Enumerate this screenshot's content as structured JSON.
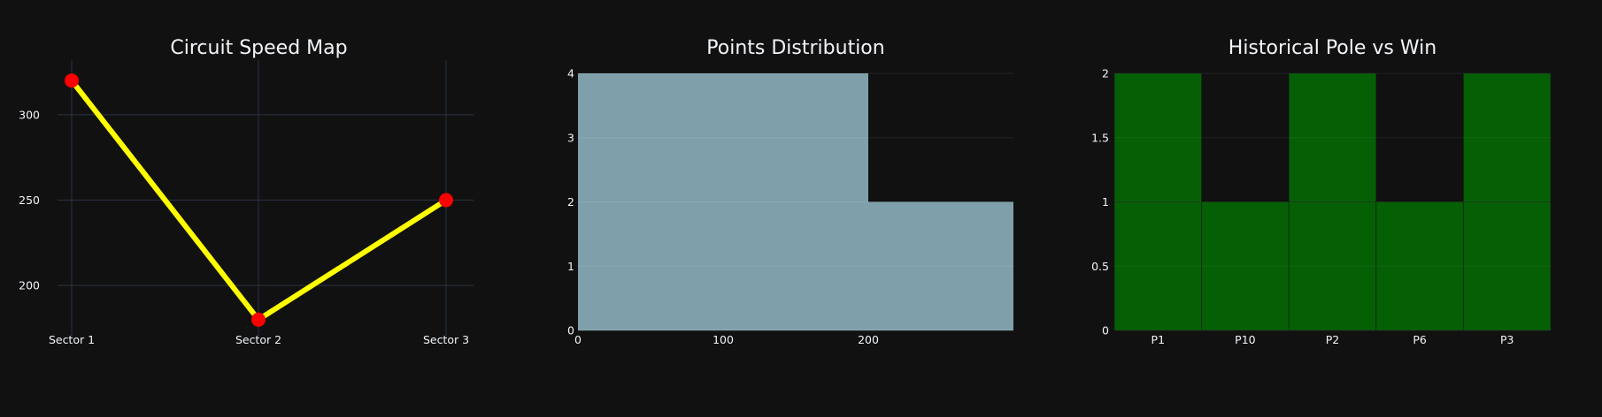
{
  "colors": {
    "background": "#111111",
    "grid": "#283442",
    "text": "#f2f5fa",
    "line": "#ffff00",
    "marker": "#ff0000",
    "histogram_fill": "#7fa0aa",
    "bar_fill": "#055f05"
  },
  "chart_data": [
    {
      "type": "line",
      "title": "Circuit Speed Map",
      "categories": [
        "Sector 1",
        "Sector 2",
        "Sector 3"
      ],
      "series": [
        {
          "values": [
            320,
            180,
            250
          ]
        }
      ],
      "ylim": [
        168,
        332
      ],
      "yticks": [
        200,
        250,
        300
      ],
      "grid": true,
      "markers": true
    },
    {
      "type": "bar",
      "title": "Points Distribution",
      "histogram": true,
      "bins": [
        {
          "x0": 0,
          "x1": 200,
          "count": 4
        },
        {
          "x0": 200,
          "x1": 300,
          "count": 2
        }
      ],
      "xlim": [
        0,
        300
      ],
      "xticks": [
        0,
        100,
        200
      ],
      "ylim": [
        0,
        4
      ],
      "yticks": [
        0,
        1,
        2,
        3,
        4
      ],
      "grid": true
    },
    {
      "type": "bar",
      "title": "Historical Pole vs Win",
      "categories": [
        "P1",
        "P10",
        "P2",
        "P6",
        "P3"
      ],
      "stacked_segments": [
        [
          1,
          1
        ],
        [
          1
        ],
        [
          1,
          1
        ],
        [
          1
        ],
        [
          1,
          1
        ]
      ],
      "values": [
        2,
        1,
        2,
        1,
        2
      ],
      "ylim": [
        0,
        2
      ],
      "yticks": [
        "0",
        "0.5",
        "1",
        "1.5",
        "2"
      ],
      "grid": true
    }
  ]
}
